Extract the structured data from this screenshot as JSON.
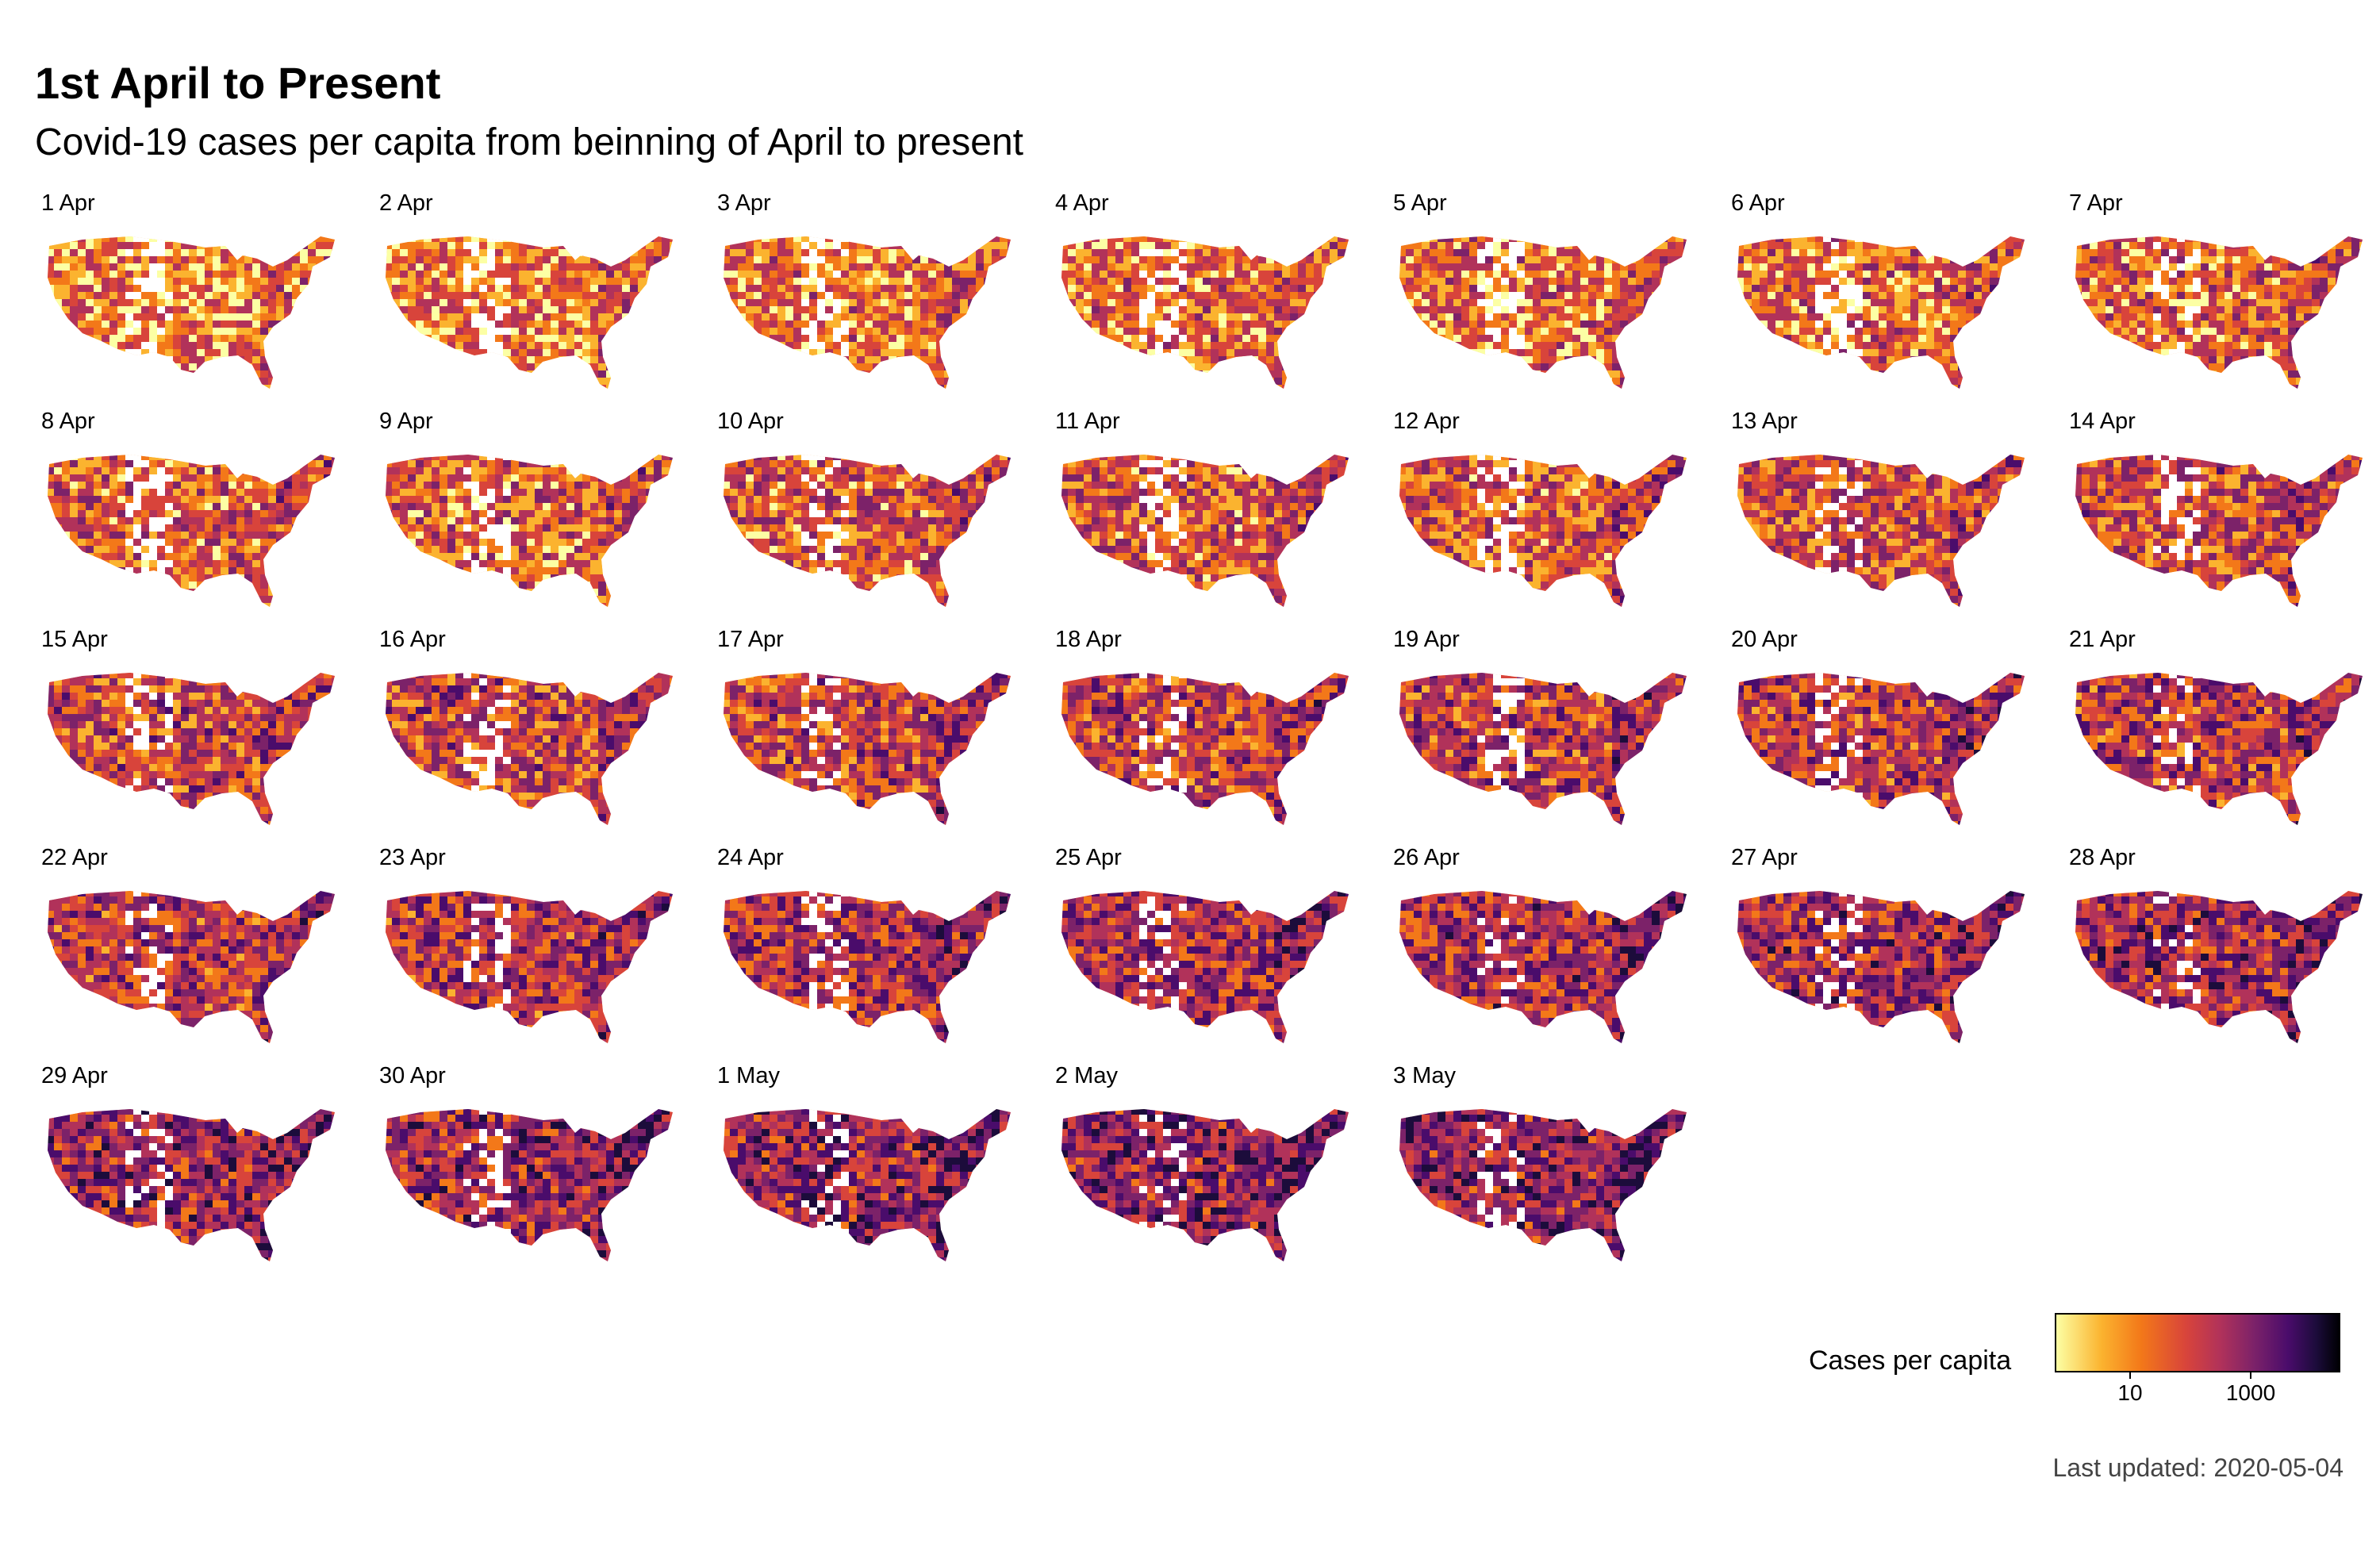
{
  "title": "1st April to Present",
  "subtitle": "Covid-19 cases per capita from beinning of April to present",
  "panels": [
    "1 Apr",
    "2 Apr",
    "3 Apr",
    "4 Apr",
    "5 Apr",
    "6 Apr",
    "7 Apr",
    "8 Apr",
    "9 Apr",
    "10 Apr",
    "11 Apr",
    "12 Apr",
    "13 Apr",
    "14 Apr",
    "15 Apr",
    "16 Apr",
    "17 Apr",
    "18 Apr",
    "19 Apr",
    "20 Apr",
    "21 Apr",
    "22 Apr",
    "23 Apr",
    "24 Apr",
    "25 Apr",
    "26 Apr",
    "27 Apr",
    "28 Apr",
    "29 Apr",
    "30 Apr",
    "1 May",
    "2 May",
    "3 May"
  ],
  "legend": {
    "title": "Cases per capita",
    "ticks": [
      "10",
      "1000"
    ],
    "scale": "log",
    "colors": [
      "#fcffa4",
      "#fbb32f",
      "#f37819",
      "#d8443b",
      "#b1325a",
      "#7c2269",
      "#4a0c6b",
      "#1c0c3b",
      "#000004"
    ]
  },
  "caption": "Last updated: 2020-05-04"
}
